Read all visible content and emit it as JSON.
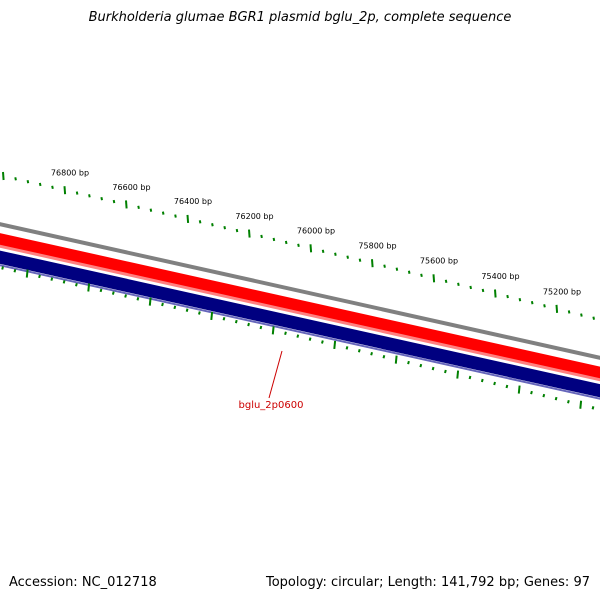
{
  "title": "Burkholderia glumae BGR1 plasmid bglu_2p, complete sequence",
  "footer": {
    "accession": "Accession: NC_012718",
    "summary": "Topology: circular; Length: 141,792 bp; Genes: 97"
  },
  "ruler": {
    "labels": [
      "76800 bp",
      "76600 bp",
      "76400 bp",
      "76200 bp",
      "76000 bp",
      "75800 bp",
      "75600 bp",
      "75400 bp",
      "75200 bp"
    ]
  },
  "gene_label": "bglu_2p0600",
  "colors": {
    "ruler_ticks": "#008000",
    "outer_ring": "#808080",
    "forward_strand": "#ff0000",
    "reverse_strand": "#000080",
    "gene_label": "#cc0000",
    "pointer": "#cc0000"
  }
}
